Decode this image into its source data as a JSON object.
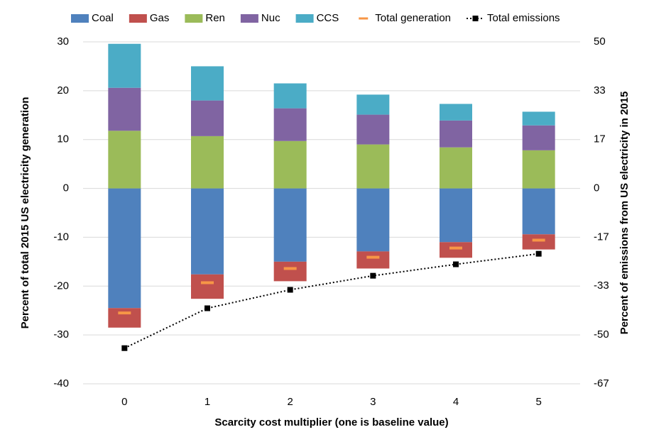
{
  "chart_data": {
    "type": "bar",
    "xlabel": "Scarcity cost multiplier (one is baseline value)",
    "ylabel": "Percent of total 2015 US electricity generation",
    "y2label": "Percent of emissions from US electricity in 2015",
    "categories": [
      "0",
      "1",
      "2",
      "3",
      "4",
      "5"
    ],
    "ylim": [
      -40,
      30
    ],
    "yticks": [
      -40,
      -30,
      -20,
      -10,
      0,
      10,
      20,
      30
    ],
    "y2lim": [
      -66.67,
      50
    ],
    "y2ticks": [
      {
        "value": -66.67,
        "label": "-67"
      },
      {
        "value": -50,
        "label": "-50"
      },
      {
        "value": -33.33,
        "label": "-33"
      },
      {
        "value": -16.67,
        "label": "-17"
      },
      0,
      {
        "value": 16.67,
        "label": "17"
      },
      {
        "value": 33.33,
        "label": "33"
      },
      50
    ],
    "grid": true,
    "legend": "top",
    "series": [
      {
        "name": "Coal",
        "color": "#4f81bd",
        "style": "bar",
        "values": [
          -24.5,
          -17.6,
          -15.0,
          -12.9,
          -11.0,
          -9.4
        ]
      },
      {
        "name": "Gas",
        "color": "#c0504d",
        "style": "bar",
        "values": [
          -4.0,
          -5.0,
          -4.0,
          -3.5,
          -3.2,
          -3.1
        ]
      },
      {
        "name": "Ren",
        "color": "#9bbb59",
        "style": "bar",
        "values": [
          11.8,
          10.7,
          9.7,
          9.0,
          8.4,
          7.8
        ]
      },
      {
        "name": "Nuc",
        "color": "#8064a2",
        "style": "bar",
        "values": [
          8.8,
          7.3,
          6.7,
          6.1,
          5.5,
          5.1
        ]
      },
      {
        "name": "CCS",
        "color": "#4bacc6",
        "style": "bar",
        "values": [
          9.0,
          7.0,
          5.1,
          4.1,
          3.4,
          2.8
        ]
      },
      {
        "name": "Total generation",
        "color": "#f79646",
        "style": "dash",
        "values": [
          -25.5,
          -19.3,
          -16.4,
          -14.1,
          -12.2,
          -10.6
        ]
      },
      {
        "name": "Total emissions",
        "color": "#000000",
        "style": "line",
        "axis": "y2",
        "values": [
          -54.5,
          -40.9,
          -34.6,
          -29.8,
          -25.9,
          -22.3
        ]
      }
    ]
  }
}
